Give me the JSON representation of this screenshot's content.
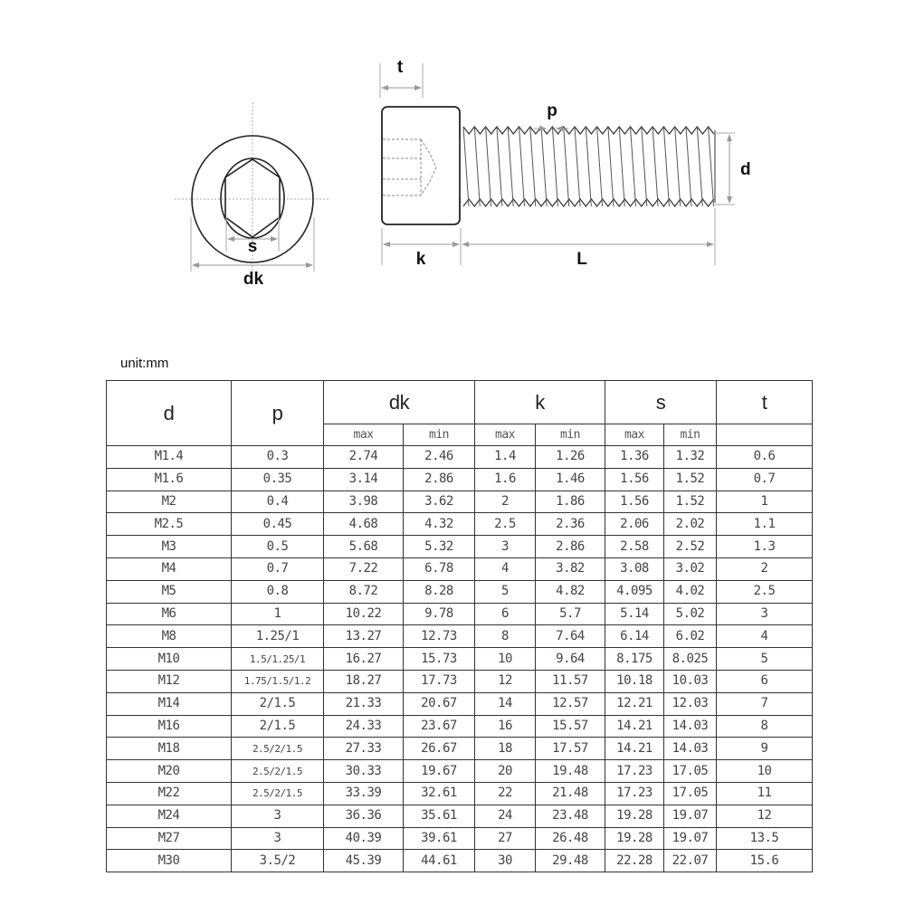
{
  "diagram": {
    "labels": {
      "t": "t",
      "p": "p",
      "d": "d",
      "k": "k",
      "L": "L",
      "s": "s",
      "dk": "dk"
    }
  },
  "unit_label": "unit:mm",
  "table": {
    "headers": {
      "d": "d",
      "p": "p",
      "dk": "dk",
      "k": "k",
      "s": "s",
      "t": "t",
      "max": "max",
      "min": "min"
    },
    "rows": [
      [
        "M1.4",
        "0.3",
        "2.74",
        "2.46",
        "1.4",
        "1.26",
        "1.36",
        "1.32",
        "0.6"
      ],
      [
        "M1.6",
        "0.35",
        "3.14",
        "2.86",
        "1.6",
        "1.46",
        "1.56",
        "1.52",
        "0.7"
      ],
      [
        "M2",
        "0.4",
        "3.98",
        "3.62",
        "2",
        "1.86",
        "1.56",
        "1.52",
        "1"
      ],
      [
        "M2.5",
        "0.45",
        "4.68",
        "4.32",
        "2.5",
        "2.36",
        "2.06",
        "2.02",
        "1.1"
      ],
      [
        "M3",
        "0.5",
        "5.68",
        "5.32",
        "3",
        "2.86",
        "2.58",
        "2.52",
        "1.3"
      ],
      [
        "M4",
        "0.7",
        "7.22",
        "6.78",
        "4",
        "3.82",
        "3.08",
        "3.02",
        "2"
      ],
      [
        "M5",
        "0.8",
        "8.72",
        "8.28",
        "5",
        "4.82",
        "4.095",
        "4.02",
        "2.5"
      ],
      [
        "M6",
        "1",
        "10.22",
        "9.78",
        "6",
        "5.7",
        "5.14",
        "5.02",
        "3"
      ],
      [
        "M8",
        "1.25/1",
        "13.27",
        "12.73",
        "8",
        "7.64",
        "6.14",
        "6.02",
        "4"
      ],
      [
        "M10",
        "1.5/1.25/1",
        "16.27",
        "15.73",
        "10",
        "9.64",
        "8.175",
        "8.025",
        "5"
      ],
      [
        "M12",
        "1.75/1.5/1.2",
        "18.27",
        "17.73",
        "12",
        "11.57",
        "10.18",
        "10.03",
        "6"
      ],
      [
        "M14",
        "2/1.5",
        "21.33",
        "20.67",
        "14",
        "12.57",
        "12.21",
        "12.03",
        "7"
      ],
      [
        "M16",
        "2/1.5",
        "24.33",
        "23.67",
        "16",
        "15.57",
        "14.21",
        "14.03",
        "8"
      ],
      [
        "M18",
        "2.5/2/1.5",
        "27.33",
        "26.67",
        "18",
        "17.57",
        "14.21",
        "14.03",
        "9"
      ],
      [
        "M20",
        "2.5/2/1.5",
        "30.33",
        "19.67",
        "20",
        "19.48",
        "17.23",
        "17.05",
        "10"
      ],
      [
        "M22",
        "2.5/2/1.5",
        "33.39",
        "32.61",
        "22",
        "21.48",
        "17.23",
        "17.05",
        "11"
      ],
      [
        "M24",
        "3",
        "36.36",
        "35.61",
        "24",
        "23.48",
        "19.28",
        "19.07",
        "12"
      ],
      [
        "M27",
        "3",
        "40.39",
        "39.61",
        "27",
        "26.48",
        "19.28",
        "19.07",
        "13.5"
      ],
      [
        "M30",
        "3.5/2",
        "45.39",
        "44.61",
        "30",
        "29.48",
        "22.28",
        "22.07",
        "15.6"
      ]
    ]
  }
}
